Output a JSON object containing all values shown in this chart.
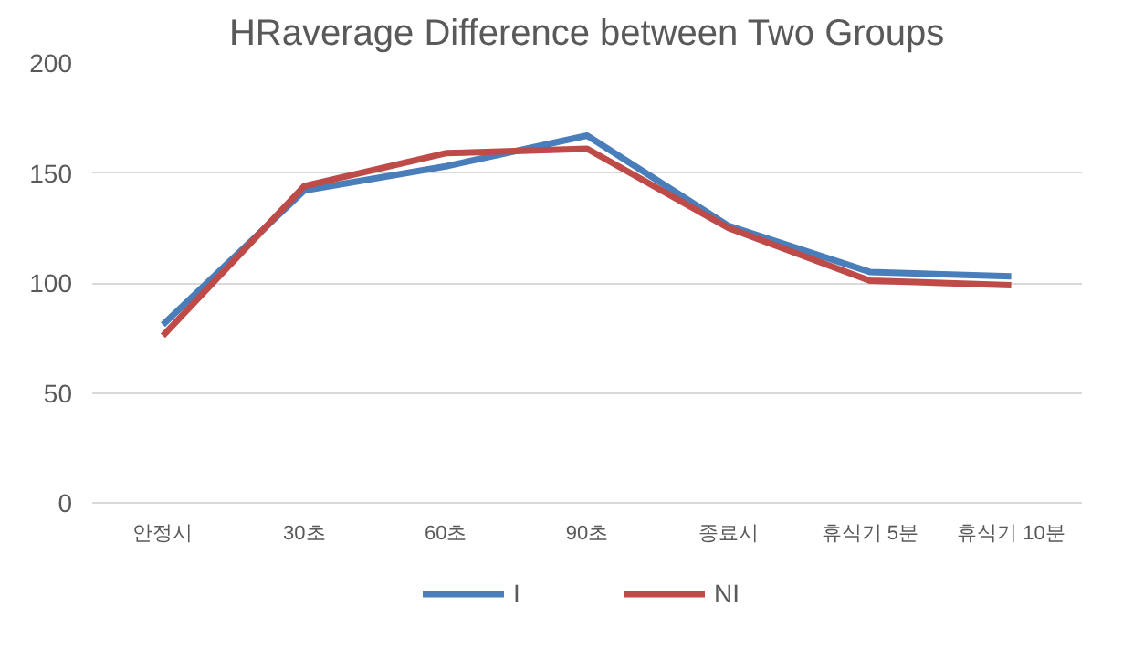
{
  "chart_data": {
    "type": "line",
    "title": "HRaverage Difference between Two Groups",
    "categories": [
      "안정시",
      "30초",
      "60초",
      "90초",
      "종료시",
      "휴식기 5분",
      "휴식기 10분"
    ],
    "series": [
      {
        "name": "I",
        "color": "#4a7ebb",
        "values": [
          81,
          142,
          153,
          167,
          126,
          105,
          103
        ]
      },
      {
        "name": "NI",
        "color": "#be4b48",
        "values": [
          76,
          144,
          159,
          161,
          125,
          101,
          99
        ]
      }
    ],
    "ylim": [
      0,
      200
    ],
    "yticks": [
      0,
      50,
      100,
      150,
      200
    ],
    "grid": "y",
    "legend": "bottom",
    "marker": "none",
    "line_style": "solid"
  }
}
